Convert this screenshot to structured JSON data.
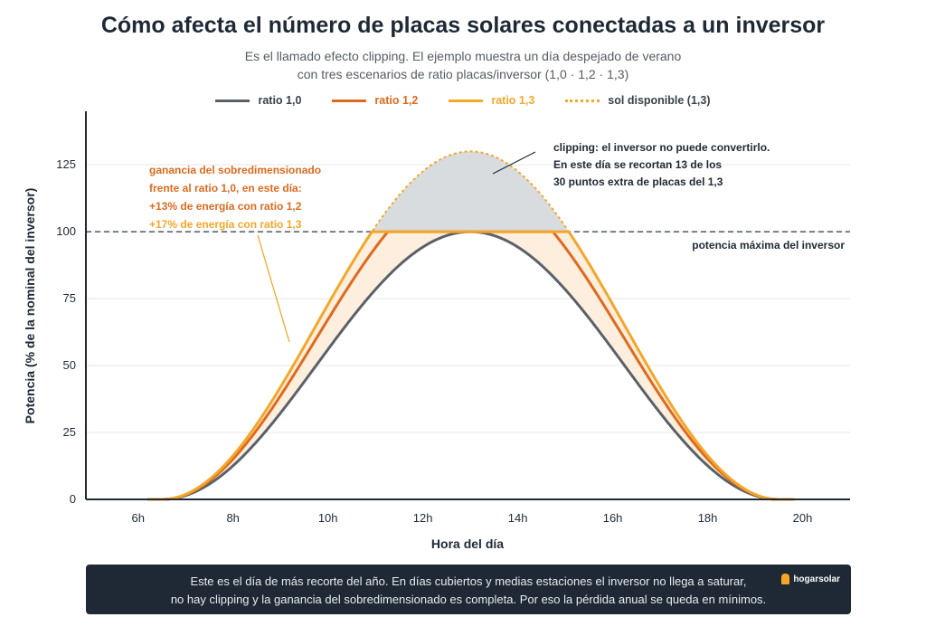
{
  "header": {
    "title": "Cómo afecta el número de placas solares conectadas a un inversor",
    "subtitle_line1": "Es el llamado efecto clipping. El ejemplo muestra un día despejado de verano",
    "subtitle_line2": "con tres escenarios de ratio placas/inversor (1,0 · 1,2 · 1,3)"
  },
  "legend": [
    {
      "label": "ratio 1,0",
      "color": "#5a6168",
      "style": "solid"
    },
    {
      "label": "ratio 1,2",
      "color": "#dd6a1f",
      "style": "solid"
    },
    {
      "label": "ratio 1,3",
      "color": "#f3a72a",
      "style": "solid"
    },
    {
      "label": "sol disponible (1,3)",
      "color": "#f3a72a",
      "style": "dotted"
    }
  ],
  "chart_data": {
    "type": "line",
    "xlabel": "Hora del día",
    "ylabel": "Potencia (% de la nominal del inversor)",
    "xlim": [
      4.9,
      21
    ],
    "ylim": [
      0,
      145
    ],
    "x_ticks": [
      6,
      8,
      10,
      12,
      14,
      16,
      18,
      20
    ],
    "x_tick_labels": [
      "6h",
      "8h",
      "10h",
      "12h",
      "14h",
      "16h",
      "18h",
      "20h"
    ],
    "y_ticks": [
      0,
      25,
      50,
      75,
      100,
      125
    ],
    "y_tick_labels": [
      "0",
      "25",
      "50",
      "75",
      "100",
      "125"
    ],
    "grid": "horizontal",
    "inverter_max": 100,
    "inverter_max_label": "potencia máxima del inversor",
    "sunrise": 6.5,
    "sunset": 19.5,
    "series": [
      {
        "name": "ratio 1,0",
        "ratio": 1.0,
        "color": "#5a6168",
        "clipped": true
      },
      {
        "name": "ratio 1,2",
        "ratio": 1.2,
        "color": "#dd6a1f",
        "clipped": true
      },
      {
        "name": "ratio 1,3",
        "ratio": 1.3,
        "color": "#f3a72a",
        "clipped": true
      },
      {
        "name": "sol disponible (1,3)",
        "ratio": 1.3,
        "color": "#f3a72a",
        "clipped": false,
        "dotted": true
      }
    ],
    "annotations": {
      "gain": {
        "line1": "ganancia del sobredimensionado",
        "line2": "frente al ratio 1,0, en este día:",
        "line3": "+13% de energía con ratio 1,2",
        "line4": "+17% de energía con ratio 1,3"
      },
      "clipping": {
        "line1": "clipping: el inversor no puede convertirlo.",
        "line2": "En este día se recortan 13 de los",
        "line3": "30 puntos extra de placas del 1,3"
      }
    }
  },
  "footer": {
    "line1": "Este es el día de más recorte del año. En días cubiertos y medias estaciones el inversor no llega a saturar,",
    "line2": "no hay clipping y la ganancia del sobredimensionado es completa. Por eso la pérdida anual se queda en mínimos.",
    "brand": "hogarsolar"
  }
}
